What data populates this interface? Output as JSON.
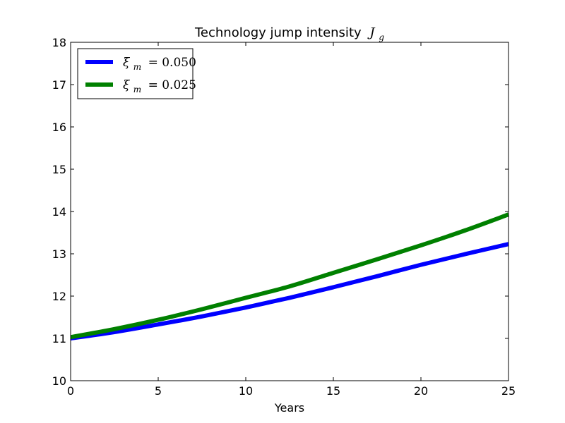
{
  "chart_data": {
    "type": "line",
    "title": "Technology jump intensity",
    "title_math": {
      "symbol": "J",
      "subscript": "g"
    },
    "xlabel": "Years",
    "ylabel": "",
    "xlim": [
      0,
      25
    ],
    "ylim": [
      10,
      18
    ],
    "x_ticks": [
      "0",
      "5",
      "10",
      "15",
      "20",
      "25"
    ],
    "y_ticks": [
      "10",
      "11",
      "12",
      "13",
      "14",
      "15",
      "16",
      "17",
      "18"
    ],
    "grid": false,
    "legend_position": "top-left",
    "x": [
      0,
      2.5,
      5,
      7.5,
      10,
      12.5,
      15,
      17.5,
      20,
      22.5,
      25
    ],
    "series": [
      {
        "name": "ξ_m = 0.050",
        "legend_symbol": "ξ",
        "legend_subscript": "m",
        "legend_value": "= 0.050",
        "color": "#0000ff",
        "values": [
          11.0,
          11.15,
          11.33,
          11.52,
          11.73,
          11.96,
          12.21,
          12.47,
          12.74,
          12.99,
          13.23
        ]
      },
      {
        "name": "ξ_m = 0.025",
        "legend_symbol": "ξ",
        "legend_subscript": "m",
        "legend_value": "= 0.025",
        "color": "#008000",
        "values": [
          11.03,
          11.22,
          11.44,
          11.69,
          11.96,
          12.23,
          12.55,
          12.87,
          13.2,
          13.55,
          13.93
        ]
      }
    ]
  }
}
